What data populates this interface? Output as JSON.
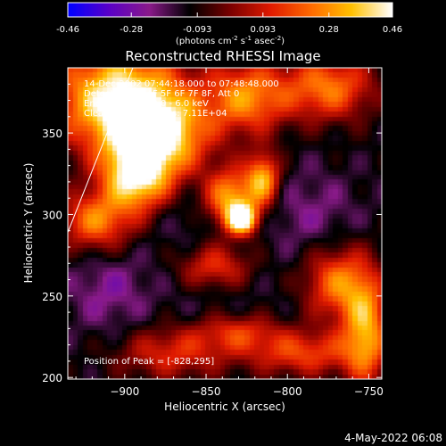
{
  "colorbar": {
    "tick_labels": [
      "-0.46",
      "-0.28",
      "-0.093",
      "0.093",
      "0.28",
      "0.46"
    ],
    "tick_values": [
      -0.46,
      -0.28,
      -0.093,
      0.093,
      0.28,
      0.46
    ],
    "range": [
      -0.46,
      0.46
    ],
    "units_base": "(photons cm",
    "units_exp1": "-2",
    "units_mid": " s",
    "units_exp2": "-1",
    "units_tail": " asec",
    "units_exp3": "-2",
    "units_close": ")",
    "colors": [
      "#0000ff",
      "#5a00c8",
      "#8a1a8a",
      "#000000",
      "#7a0000",
      "#e01a00",
      "#ff6a00",
      "#ffc000",
      "#ffffff"
    ]
  },
  "chart_data": {
    "type": "heatmap",
    "title": "Reconstructed RHESSI Image",
    "xlabel": "Heliocentric X (arcsec)",
    "ylabel": "Heliocentric Y (arcsec)",
    "xlim": [
      -935,
      -742
    ],
    "ylim": [
      199,
      390
    ],
    "x_ticks": [
      -900,
      -850,
      -800,
      -750
    ],
    "x_tick_labels": [
      "−900",
      "−850",
      "−800",
      "−750"
    ],
    "y_ticks": [
      200,
      250,
      300,
      350
    ],
    "y_tick_labels": [
      "200",
      "250",
      "300",
      "350"
    ],
    "annotations": {
      "time": "14-Dec-2002 07:44:18.000 to 07:48:48.000",
      "detectors": "Detectors: 3F 4F 5F 6F 7F 8F, Att 0",
      "energy": "Energy Range: 3.0 - 6.0 keV",
      "clean": "Clean     Total counts: 7.11E+04",
      "peak": "Position of Peak = [-828,295]"
    },
    "peak": {
      "x": -828,
      "y": 295
    },
    "limb_line": {
      "points": [
        [
          -935,
          289
        ],
        [
          -895,
          390
        ]
      ]
    },
    "blobs": [
      {
        "x": -905,
        "y": 372,
        "rx": 40,
        "ry": 32,
        "v": 0.42
      },
      {
        "x": -880,
        "y": 348,
        "rx": 30,
        "ry": 26,
        "v": 0.4
      },
      {
        "x": -893,
        "y": 322,
        "rx": 20,
        "ry": 20,
        "v": 0.36
      },
      {
        "x": -918,
        "y": 296,
        "rx": 22,
        "ry": 18,
        "v": 0.24
      },
      {
        "x": -825,
        "y": 372,
        "rx": 25,
        "ry": 22,
        "v": 0.26
      },
      {
        "x": -775,
        "y": 378,
        "rx": 28,
        "ry": 20,
        "v": 0.24
      },
      {
        "x": -828,
        "y": 297,
        "rx": 9,
        "ry": 9,
        "v": 0.46
      },
      {
        "x": -835,
        "y": 310,
        "rx": 16,
        "ry": 18,
        "v": 0.32
      },
      {
        "x": -815,
        "y": 322,
        "rx": 10,
        "ry": 16,
        "v": 0.3
      },
      {
        "x": -845,
        "y": 268,
        "rx": 22,
        "ry": 14,
        "v": 0.14
      },
      {
        "x": -770,
        "y": 258,
        "rx": 20,
        "ry": 22,
        "v": 0.22
      },
      {
        "x": -752,
        "y": 230,
        "rx": 14,
        "ry": 34,
        "v": 0.3
      },
      {
        "x": -790,
        "y": 215,
        "rx": 34,
        "ry": 14,
        "v": 0.16
      },
      {
        "x": -872,
        "y": 215,
        "rx": 36,
        "ry": 16,
        "v": 0.12
      },
      {
        "x": -830,
        "y": 228,
        "rx": 26,
        "ry": 12,
        "v": 0.1
      },
      {
        "x": -910,
        "y": 255,
        "rx": 24,
        "ry": 22,
        "v": -0.24
      },
      {
        "x": -860,
        "y": 300,
        "rx": 26,
        "ry": 30,
        "v": -0.18
      },
      {
        "x": -785,
        "y": 300,
        "rx": 28,
        "ry": 26,
        "v": -0.22
      },
      {
        "x": -845,
        "y": 245,
        "rx": 30,
        "ry": 18,
        "v": -0.16
      },
      {
        "x": -808,
        "y": 235,
        "rx": 22,
        "ry": 16,
        "v": -0.14
      },
      {
        "x": -760,
        "y": 335,
        "rx": 22,
        "ry": 22,
        "v": -0.12
      },
      {
        "x": -905,
        "y": 225,
        "rx": 24,
        "ry": 18,
        "v": -0.16
      }
    ],
    "background_value": -0.13
  },
  "footer": {
    "date": "4-May-2022 06:08"
  }
}
